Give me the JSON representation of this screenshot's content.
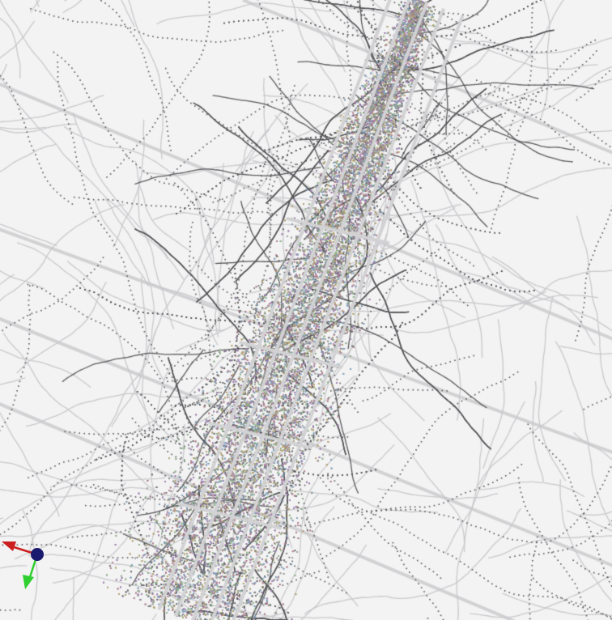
{
  "viewer": {
    "background_color": "#f3f3f3",
    "scene": {
      "band_color": "#d2d2d4",
      "fiber_color": "#555558",
      "faint_fiber_color": "#c8c8cc",
      "point_colors": [
        "#9c7fb0",
        "#8fb08a",
        "#b0a070",
        "#7f9fb8",
        "#b07f8f",
        "#a0a0a0",
        "#6f6f72"
      ]
    },
    "axes_gizmo": {
      "x_axis_color": "#cc1f1f",
      "y_axis_color": "#2fcf2f",
      "z_axis_color": "#1a1a6e",
      "x_icon": "arrow-red-icon",
      "y_icon": "arrow-green-icon",
      "z_icon": "sphere-blue-icon"
    }
  }
}
